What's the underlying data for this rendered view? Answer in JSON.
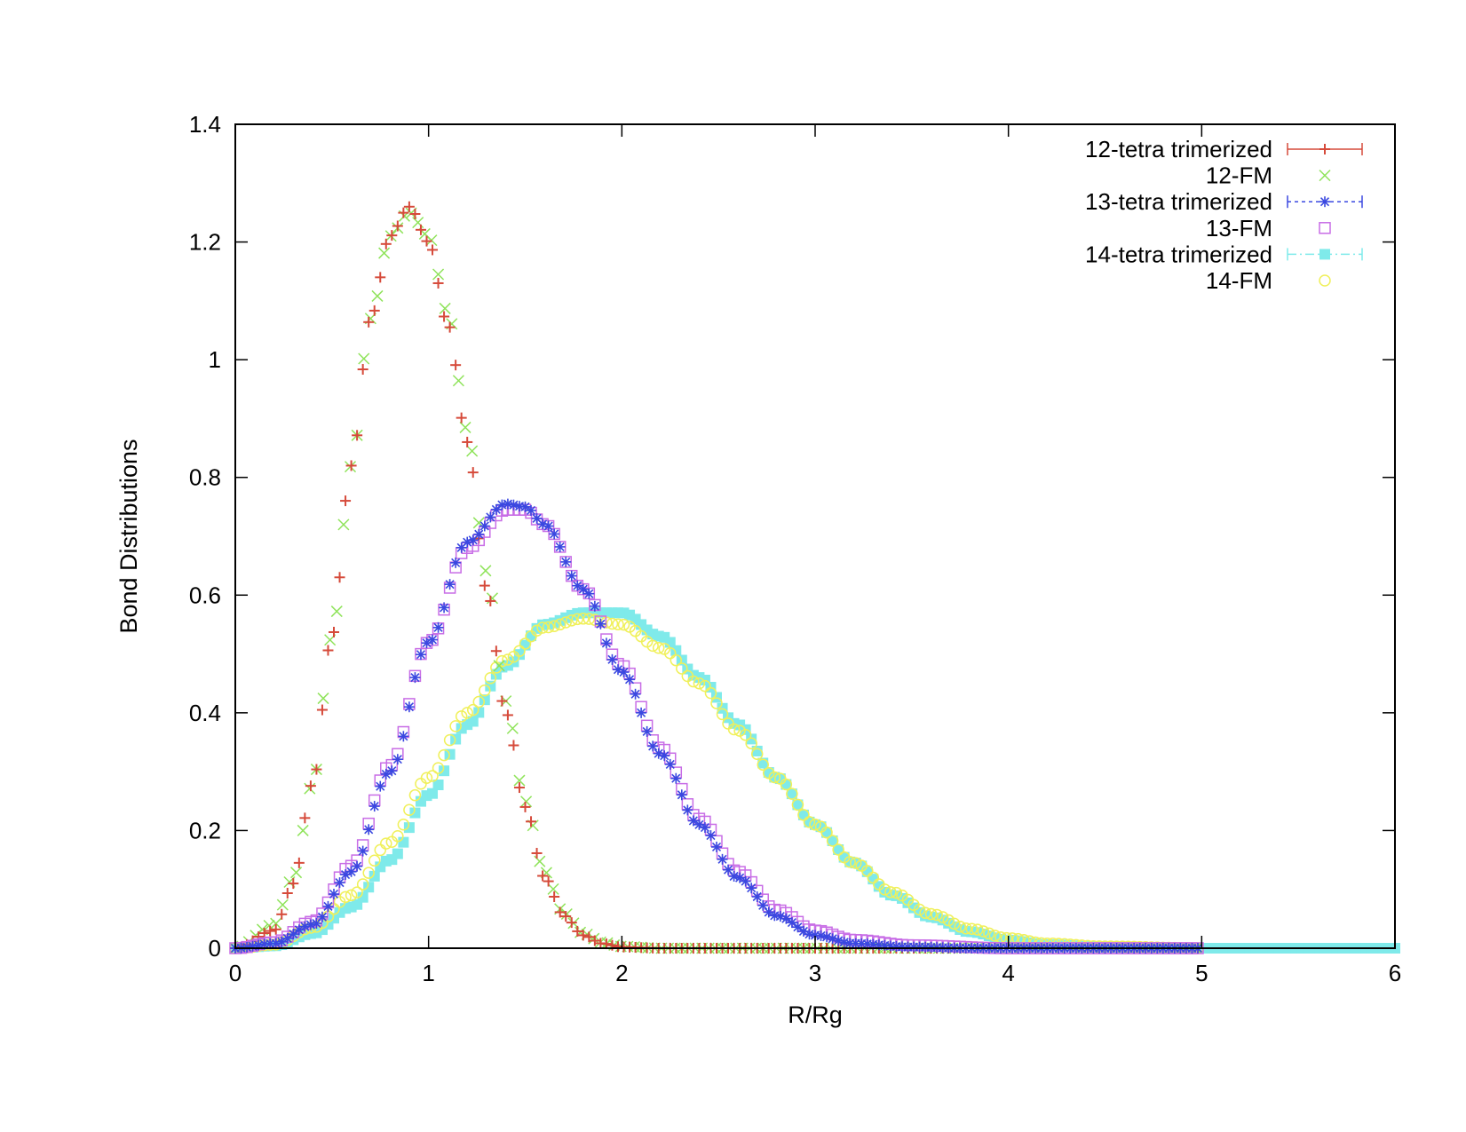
{
  "chart_data": {
    "type": "scatter",
    "xlabel": "R/Rg",
    "ylabel": "Bond Distributions",
    "xlim": [
      0,
      6
    ],
    "ylim": [
      0,
      1.4
    ],
    "xticks": [
      "0",
      "1",
      "2",
      "3",
      "4",
      "5",
      "6"
    ],
    "yticks": [
      "0",
      "0.2",
      "0.4",
      "0.6",
      "0.8",
      "1",
      "1.2",
      "1.4"
    ],
    "legend_position": "top-right",
    "series": [
      {
        "name": "12-tetra trimerized",
        "color": "#d64a3a",
        "marker": "plus-errorbar",
        "x_start": 0,
        "x_end": 5.0,
        "dx": 0.03,
        "points": [
          [
            0,
            0
          ],
          [
            0.2,
            0.03
          ],
          [
            0.3,
            0.11
          ],
          [
            0.4,
            0.28
          ],
          [
            0.5,
            0.53
          ],
          [
            0.6,
            0.82
          ],
          [
            0.7,
            1.07
          ],
          [
            0.8,
            1.21
          ],
          [
            0.9,
            1.26
          ],
          [
            1.0,
            1.2
          ],
          [
            1.1,
            1.06
          ],
          [
            1.2,
            0.86
          ],
          [
            1.3,
            0.61
          ],
          [
            1.4,
            0.4
          ],
          [
            1.5,
            0.24
          ],
          [
            1.6,
            0.12
          ],
          [
            1.7,
            0.055
          ],
          [
            1.8,
            0.022
          ],
          [
            1.9,
            0.008
          ],
          [
            2.0,
            0.002
          ],
          [
            2.2,
            0
          ],
          [
            5.0,
            0
          ]
        ]
      },
      {
        "name": "12-FM",
        "color": "#8fe35a",
        "marker": "x",
        "x_start": 0,
        "x_end": 5.0,
        "dx": 0.035,
        "points": [
          [
            0,
            0
          ],
          [
            0.2,
            0.04
          ],
          [
            0.3,
            0.12
          ],
          [
            0.4,
            0.28
          ],
          [
            0.5,
            0.53
          ],
          [
            0.6,
            0.82
          ],
          [
            0.7,
            1.07
          ],
          [
            0.8,
            1.21
          ],
          [
            0.9,
            1.25
          ],
          [
            1.0,
            1.21
          ],
          [
            1.1,
            1.08
          ],
          [
            1.2,
            0.88
          ],
          [
            1.3,
            0.64
          ],
          [
            1.4,
            0.42
          ],
          [
            1.5,
            0.25
          ],
          [
            1.6,
            0.13
          ],
          [
            1.7,
            0.06
          ],
          [
            1.8,
            0.025
          ],
          [
            1.9,
            0.01
          ],
          [
            2.0,
            0.003
          ],
          [
            2.2,
            0
          ],
          [
            5.0,
            0
          ]
        ]
      },
      {
        "name": "13-tetra trimerized",
        "color": "#3a48e0",
        "marker": "star",
        "x_start": 0,
        "x_end": 5.0,
        "dx": 0.03,
        "points": [
          [
            0,
            0
          ],
          [
            0.2,
            0.008
          ],
          [
            0.4,
            0.04
          ],
          [
            0.6,
            0.13
          ],
          [
            0.8,
            0.3
          ],
          [
            1.0,
            0.52
          ],
          [
            1.2,
            0.69
          ],
          [
            1.4,
            0.755
          ],
          [
            1.5,
            0.75
          ],
          [
            1.6,
            0.72
          ],
          [
            1.8,
            0.61
          ],
          [
            2.0,
            0.47
          ],
          [
            2.2,
            0.33
          ],
          [
            2.4,
            0.21
          ],
          [
            2.6,
            0.12
          ],
          [
            2.8,
            0.055
          ],
          [
            3.0,
            0.022
          ],
          [
            3.2,
            0.008
          ],
          [
            3.5,
            0.002
          ],
          [
            3.8,
            0
          ],
          [
            5.0,
            0
          ]
        ]
      },
      {
        "name": "13-FM",
        "color": "#c86de6",
        "marker": "square-open",
        "x_start": 0,
        "x_end": 5.0,
        "dx": 0.03,
        "points": [
          [
            0,
            0
          ],
          [
            0.2,
            0.01
          ],
          [
            0.4,
            0.045
          ],
          [
            0.6,
            0.14
          ],
          [
            0.8,
            0.31
          ],
          [
            1.0,
            0.52
          ],
          [
            1.2,
            0.68
          ],
          [
            1.4,
            0.745
          ],
          [
            1.5,
            0.745
          ],
          [
            1.6,
            0.72
          ],
          [
            1.8,
            0.61
          ],
          [
            2.0,
            0.48
          ],
          [
            2.2,
            0.34
          ],
          [
            2.4,
            0.22
          ],
          [
            2.6,
            0.13
          ],
          [
            2.8,
            0.065
          ],
          [
            3.0,
            0.03
          ],
          [
            3.2,
            0.014
          ],
          [
            3.5,
            0.005
          ],
          [
            4.0,
            0
          ],
          [
            5.0,
            0
          ]
        ]
      },
      {
        "name": "14-tetra trimerized",
        "color": "#7feaea",
        "marker": "square-filled",
        "x_start": 0,
        "x_end": 6.0,
        "dx": 0.03,
        "points": [
          [
            0,
            0
          ],
          [
            0.2,
            0.004
          ],
          [
            0.4,
            0.025
          ],
          [
            0.6,
            0.07
          ],
          [
            0.8,
            0.15
          ],
          [
            1.0,
            0.26
          ],
          [
            1.2,
            0.38
          ],
          [
            1.4,
            0.48
          ],
          [
            1.6,
            0.55
          ],
          [
            1.8,
            0.57
          ],
          [
            2.0,
            0.57
          ],
          [
            2.2,
            0.53
          ],
          [
            2.4,
            0.46
          ],
          [
            2.6,
            0.38
          ],
          [
            2.8,
            0.29
          ],
          [
            3.0,
            0.21
          ],
          [
            3.2,
            0.145
          ],
          [
            3.4,
            0.09
          ],
          [
            3.6,
            0.053
          ],
          [
            3.8,
            0.028
          ],
          [
            4.0,
            0.014
          ],
          [
            4.2,
            0.006
          ],
          [
            4.5,
            0.002
          ],
          [
            5.0,
            0
          ],
          [
            6.0,
            0
          ]
        ]
      },
      {
        "name": "14-FM",
        "color": "#f0f05a",
        "marker": "circle-open",
        "x_start": 0,
        "x_end": 5.0,
        "dx": 0.03,
        "points": [
          [
            0,
            0
          ],
          [
            0.2,
            0.006
          ],
          [
            0.4,
            0.035
          ],
          [
            0.6,
            0.09
          ],
          [
            0.8,
            0.18
          ],
          [
            1.0,
            0.29
          ],
          [
            1.2,
            0.4
          ],
          [
            1.4,
            0.49
          ],
          [
            1.6,
            0.545
          ],
          [
            1.8,
            0.56
          ],
          [
            2.0,
            0.55
          ],
          [
            2.2,
            0.51
          ],
          [
            2.4,
            0.45
          ],
          [
            2.6,
            0.37
          ],
          [
            2.8,
            0.29
          ],
          [
            3.0,
            0.21
          ],
          [
            3.2,
            0.145
          ],
          [
            3.4,
            0.095
          ],
          [
            3.6,
            0.058
          ],
          [
            3.8,
            0.033
          ],
          [
            4.0,
            0.017
          ],
          [
            4.2,
            0.008
          ],
          [
            4.5,
            0.003
          ],
          [
            5.0,
            0
          ]
        ]
      }
    ]
  }
}
